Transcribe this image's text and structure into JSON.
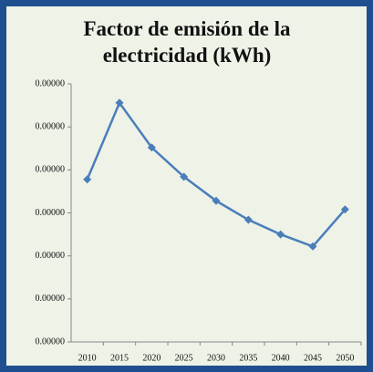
{
  "chart_data": {
    "type": "line",
    "title": "Factor de emisión de la electricidad (kWh)",
    "categories": [
      "2010",
      "2015",
      "2020",
      "2025",
      "2030",
      "2035",
      "2040",
      "2045",
      "2050"
    ],
    "series": [
      {
        "name": "Factor de emisión",
        "color": "#4a7ebb",
        "values": [
          1.89e-06,
          2.78e-06,
          2.26e-06,
          1.92e-06,
          1.64e-06,
          1.42e-06,
          1.25e-06,
          1.11e-06,
          1.54e-06
        ]
      }
    ],
    "ylim": [
      0,
      3e-06
    ],
    "yticks": [
      {
        "value": 0,
        "label": "0.00000"
      },
      {
        "value": 5e-07,
        "label": "0.00000"
      },
      {
        "value": 1e-06,
        "label": "0.00000"
      },
      {
        "value": 1.5e-06,
        "label": "0.00000"
      },
      {
        "value": 2e-06,
        "label": "0.00000"
      },
      {
        "value": 2.5e-06,
        "label": "0.00000"
      },
      {
        "value": 3e-06,
        "label": "0.00000"
      }
    ]
  }
}
